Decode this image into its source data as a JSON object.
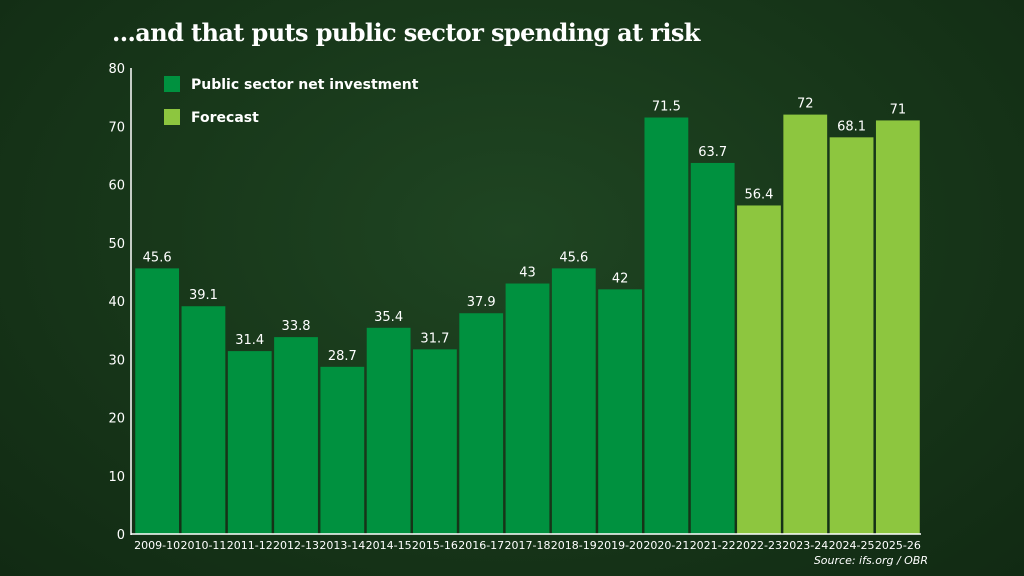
{
  "chart_data": {
    "type": "bar",
    "title": "...and that puts public sector spending at risk",
    "categories": [
      "2009-10",
      "2010-11",
      "2011-12",
      "2012-13",
      "2013-14",
      "2014-15",
      "2015-16",
      "2016-17",
      "2017-18",
      "2018-19",
      "2019-20",
      "2020-21",
      "2021-22",
      "2022-23",
      "2023-24",
      "2024-25",
      "2025-26"
    ],
    "values": [
      45.6,
      39.1,
      31.4,
      33.8,
      28.7,
      35.4,
      31.7,
      37.9,
      43,
      45.6,
      42,
      71.5,
      63.7,
      56.4,
      72,
      68.1,
      71
    ],
    "value_labels": [
      "45.6",
      "39.1",
      "31.4",
      "33.8",
      "28.7",
      "35.4",
      "31.7",
      "37.9",
      "43",
      "45.6",
      "42",
      "71.5",
      "63.7",
      "56.4",
      "72",
      "68.1",
      "71"
    ],
    "forecast": [
      false,
      false,
      false,
      false,
      false,
      false,
      false,
      false,
      false,
      false,
      false,
      false,
      false,
      true,
      true,
      true,
      true
    ],
    "series": [
      {
        "name": "Public sector net investment",
        "color": "#00913f"
      },
      {
        "name": "Forecast",
        "color": "#8dc63f"
      }
    ],
    "yticks": [
      "0",
      "10",
      "20",
      "30",
      "40",
      "50",
      "60",
      "70",
      "80"
    ],
    "ylim": [
      0,
      80
    ],
    "xlabel": "",
    "ylabel": "",
    "grid": false,
    "legend_position": "top-left",
    "source": "Source: ifs.org / OBR"
  }
}
